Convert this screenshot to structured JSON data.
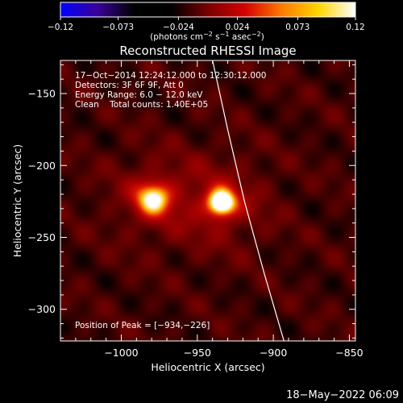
{
  "chart_data": {
    "type": "heatmap",
    "title": "Reconstructed RHESSI Image",
    "xlabel": "Heliocentric X (arcsec)",
    "ylabel": "Heliocentric Y (arcsec)",
    "xlim": [
      -1040,
      -846
    ],
    "ylim": [
      -322,
      -127
    ],
    "x_ticks": [
      -1000,
      -950,
      -900,
      -850
    ],
    "x_tick_labels": [
      "−1000",
      "−950",
      "−900",
      "−850"
    ],
    "y_ticks": [
      -150,
      -200,
      -250,
      -300
    ],
    "y_tick_labels": [
      "−150",
      "−200",
      "−250",
      "−300"
    ],
    "colorbar": {
      "range": [
        -0.12,
        0.12
      ],
      "ticks": [
        -0.12,
        -0.073,
        -0.024,
        0.024,
        0.073,
        0.12
      ],
      "tick_labels": [
        "−0.12",
        "−0.073",
        "−0.024",
        "0.024",
        "0.073",
        "0.12"
      ],
      "unit_parts": [
        "(photons cm",
        "−2",
        " s",
        "−1",
        " asec",
        "−2",
        ")"
      ],
      "colors": [
        "#0000ff",
        "#3a0099",
        "#000000",
        "#000000",
        "#7a0000",
        "#d40000",
        "#ff7a00",
        "#ffd500",
        "#ffffff"
      ]
    },
    "sources": [
      {
        "x": -934,
        "y": -226,
        "peak": 0.12
      },
      {
        "x": -979,
        "y": -223,
        "peak": 0.085
      }
    ],
    "background_level": 0.018,
    "limb_curve": [
      [
        -940,
        -127
      ],
      [
        -930,
        -175
      ],
      [
        -919,
        -225
      ],
      [
        -906,
        -275
      ],
      [
        -893,
        -322
      ]
    ],
    "info_lines": [
      "17−Oct−2014 12:24:12.000 to 12:30:12.000",
      "Detectors: 3F 6F 9F, Att 0",
      "Energy Range: 6.0 − 12.0 keV",
      "Clean    Total counts: 1.40E+05"
    ],
    "peak_label": "Position of Peak = [−934,−226]"
  },
  "footer": {
    "timestamp": "18−May−2022 06:09"
  },
  "colors": {
    "background": "#000000",
    "axes": "#ffffff",
    "limb": "#ffffff"
  }
}
